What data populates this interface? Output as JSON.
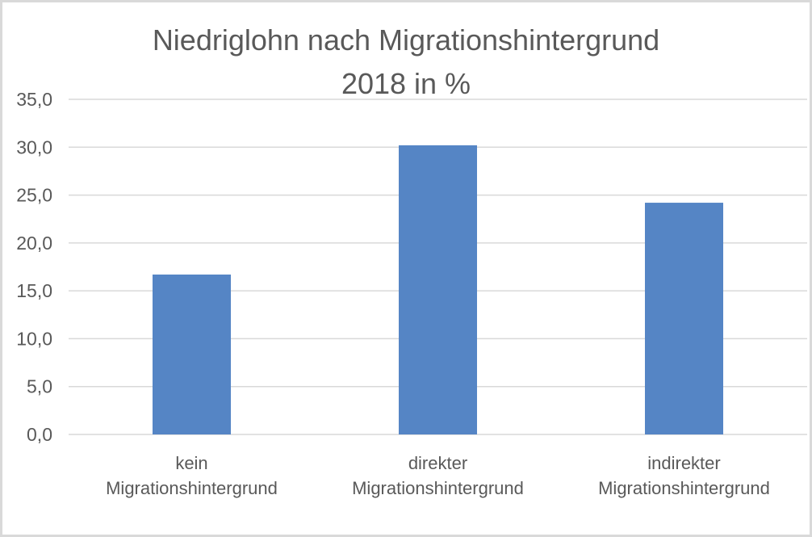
{
  "chart_data": {
    "type": "bar",
    "title": [
      "Niedriglohn nach Migrationshintergrund",
      "2018 in %"
    ],
    "xlabel": "",
    "ylabel": "",
    "ylim": [
      0,
      35
    ],
    "y_ticks": [
      "0,0",
      "5,0",
      "10,0",
      "15,0",
      "20,0",
      "25,0",
      "30,0",
      "35,0"
    ],
    "categories": [
      [
        "kein",
        "Migrationshintergrund"
      ],
      [
        "direkter",
        "Migrationshintergrund"
      ],
      [
        "indirekter",
        "Migrationshintergrund"
      ]
    ],
    "series": [
      {
        "values": [
          16.7,
          30.2,
          24.2
        ],
        "color": "#5585c5"
      }
    ],
    "grid": true,
    "legend": "none"
  }
}
